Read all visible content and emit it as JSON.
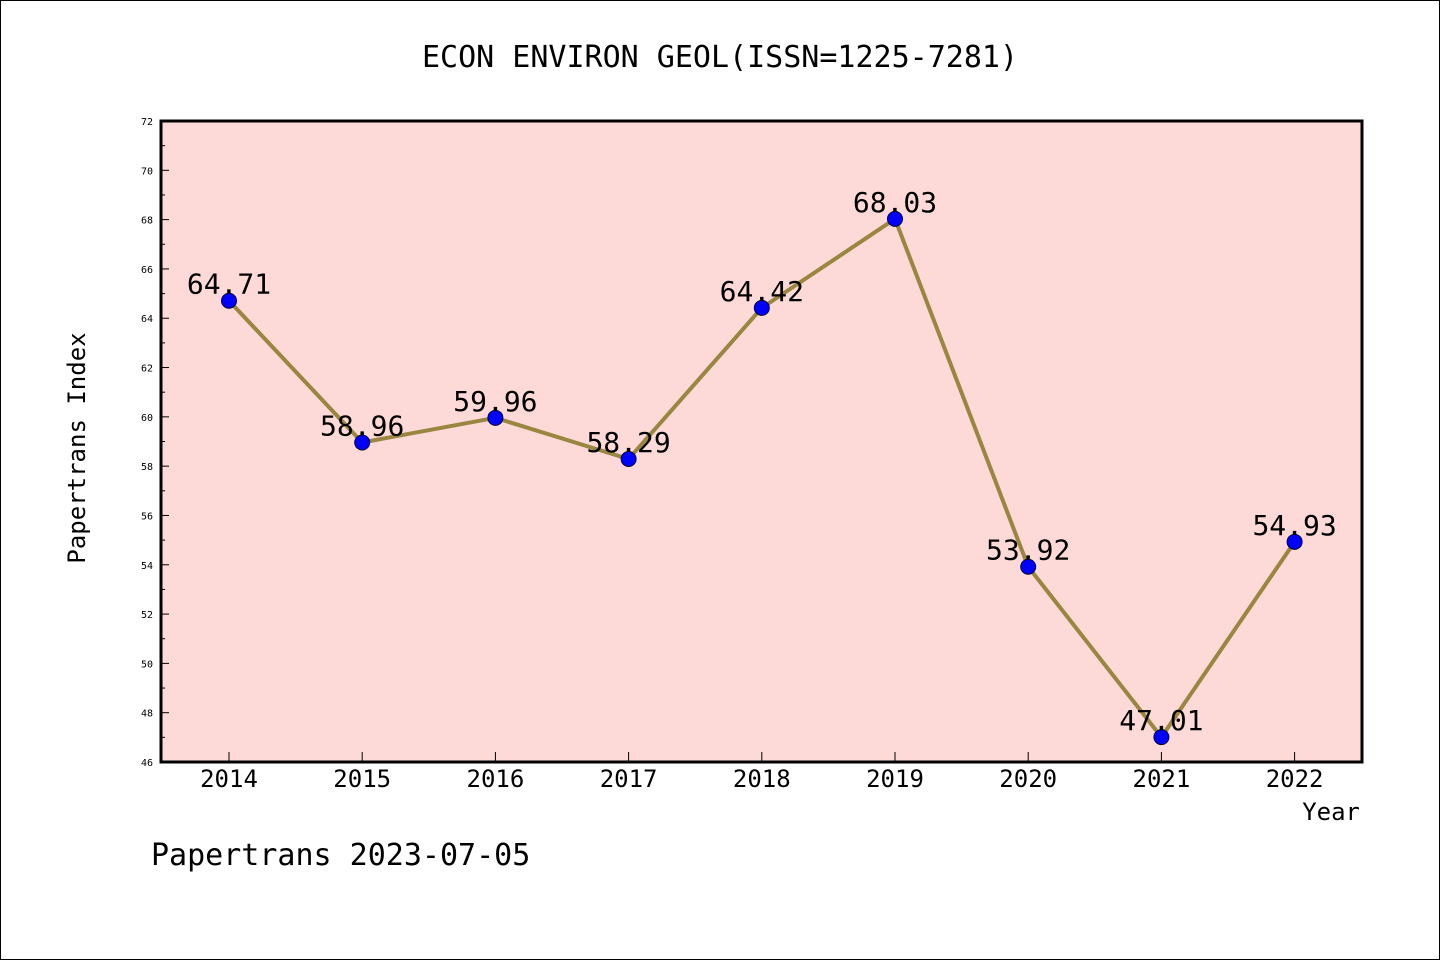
{
  "chart_data": {
    "type": "line",
    "title": "ECON ENVIRON GEOL(ISSN=1225-7281)",
    "xlabel": "Year",
    "ylabel": "Papertrans Index",
    "categories": [
      "2014",
      "2015",
      "2016",
      "2017",
      "2018",
      "2019",
      "2020",
      "2021",
      "2022"
    ],
    "series": [
      {
        "values": [
          64.71,
          58.96,
          59.96,
          58.29,
          64.42,
          68.03,
          53.92,
          47.01,
          54.93
        ],
        "labels": [
          "64.71",
          "58.96",
          "59.96",
          "58.29",
          "64.42",
          "68.03",
          "53.92",
          "47.01",
          "54.93"
        ]
      }
    ],
    "ylim": [
      46,
      72
    ],
    "yticks": [
      "46",
      "48",
      "50",
      "52",
      "54",
      "56",
      "58",
      "60",
      "62",
      "64",
      "66",
      "68",
      "70",
      "72"
    ],
    "grid": false,
    "colors": {
      "plot_background": "#fddad7",
      "line": "#9a8641",
      "marker": "#0000ff"
    }
  },
  "footer": "Papertrans 2023-07-05"
}
